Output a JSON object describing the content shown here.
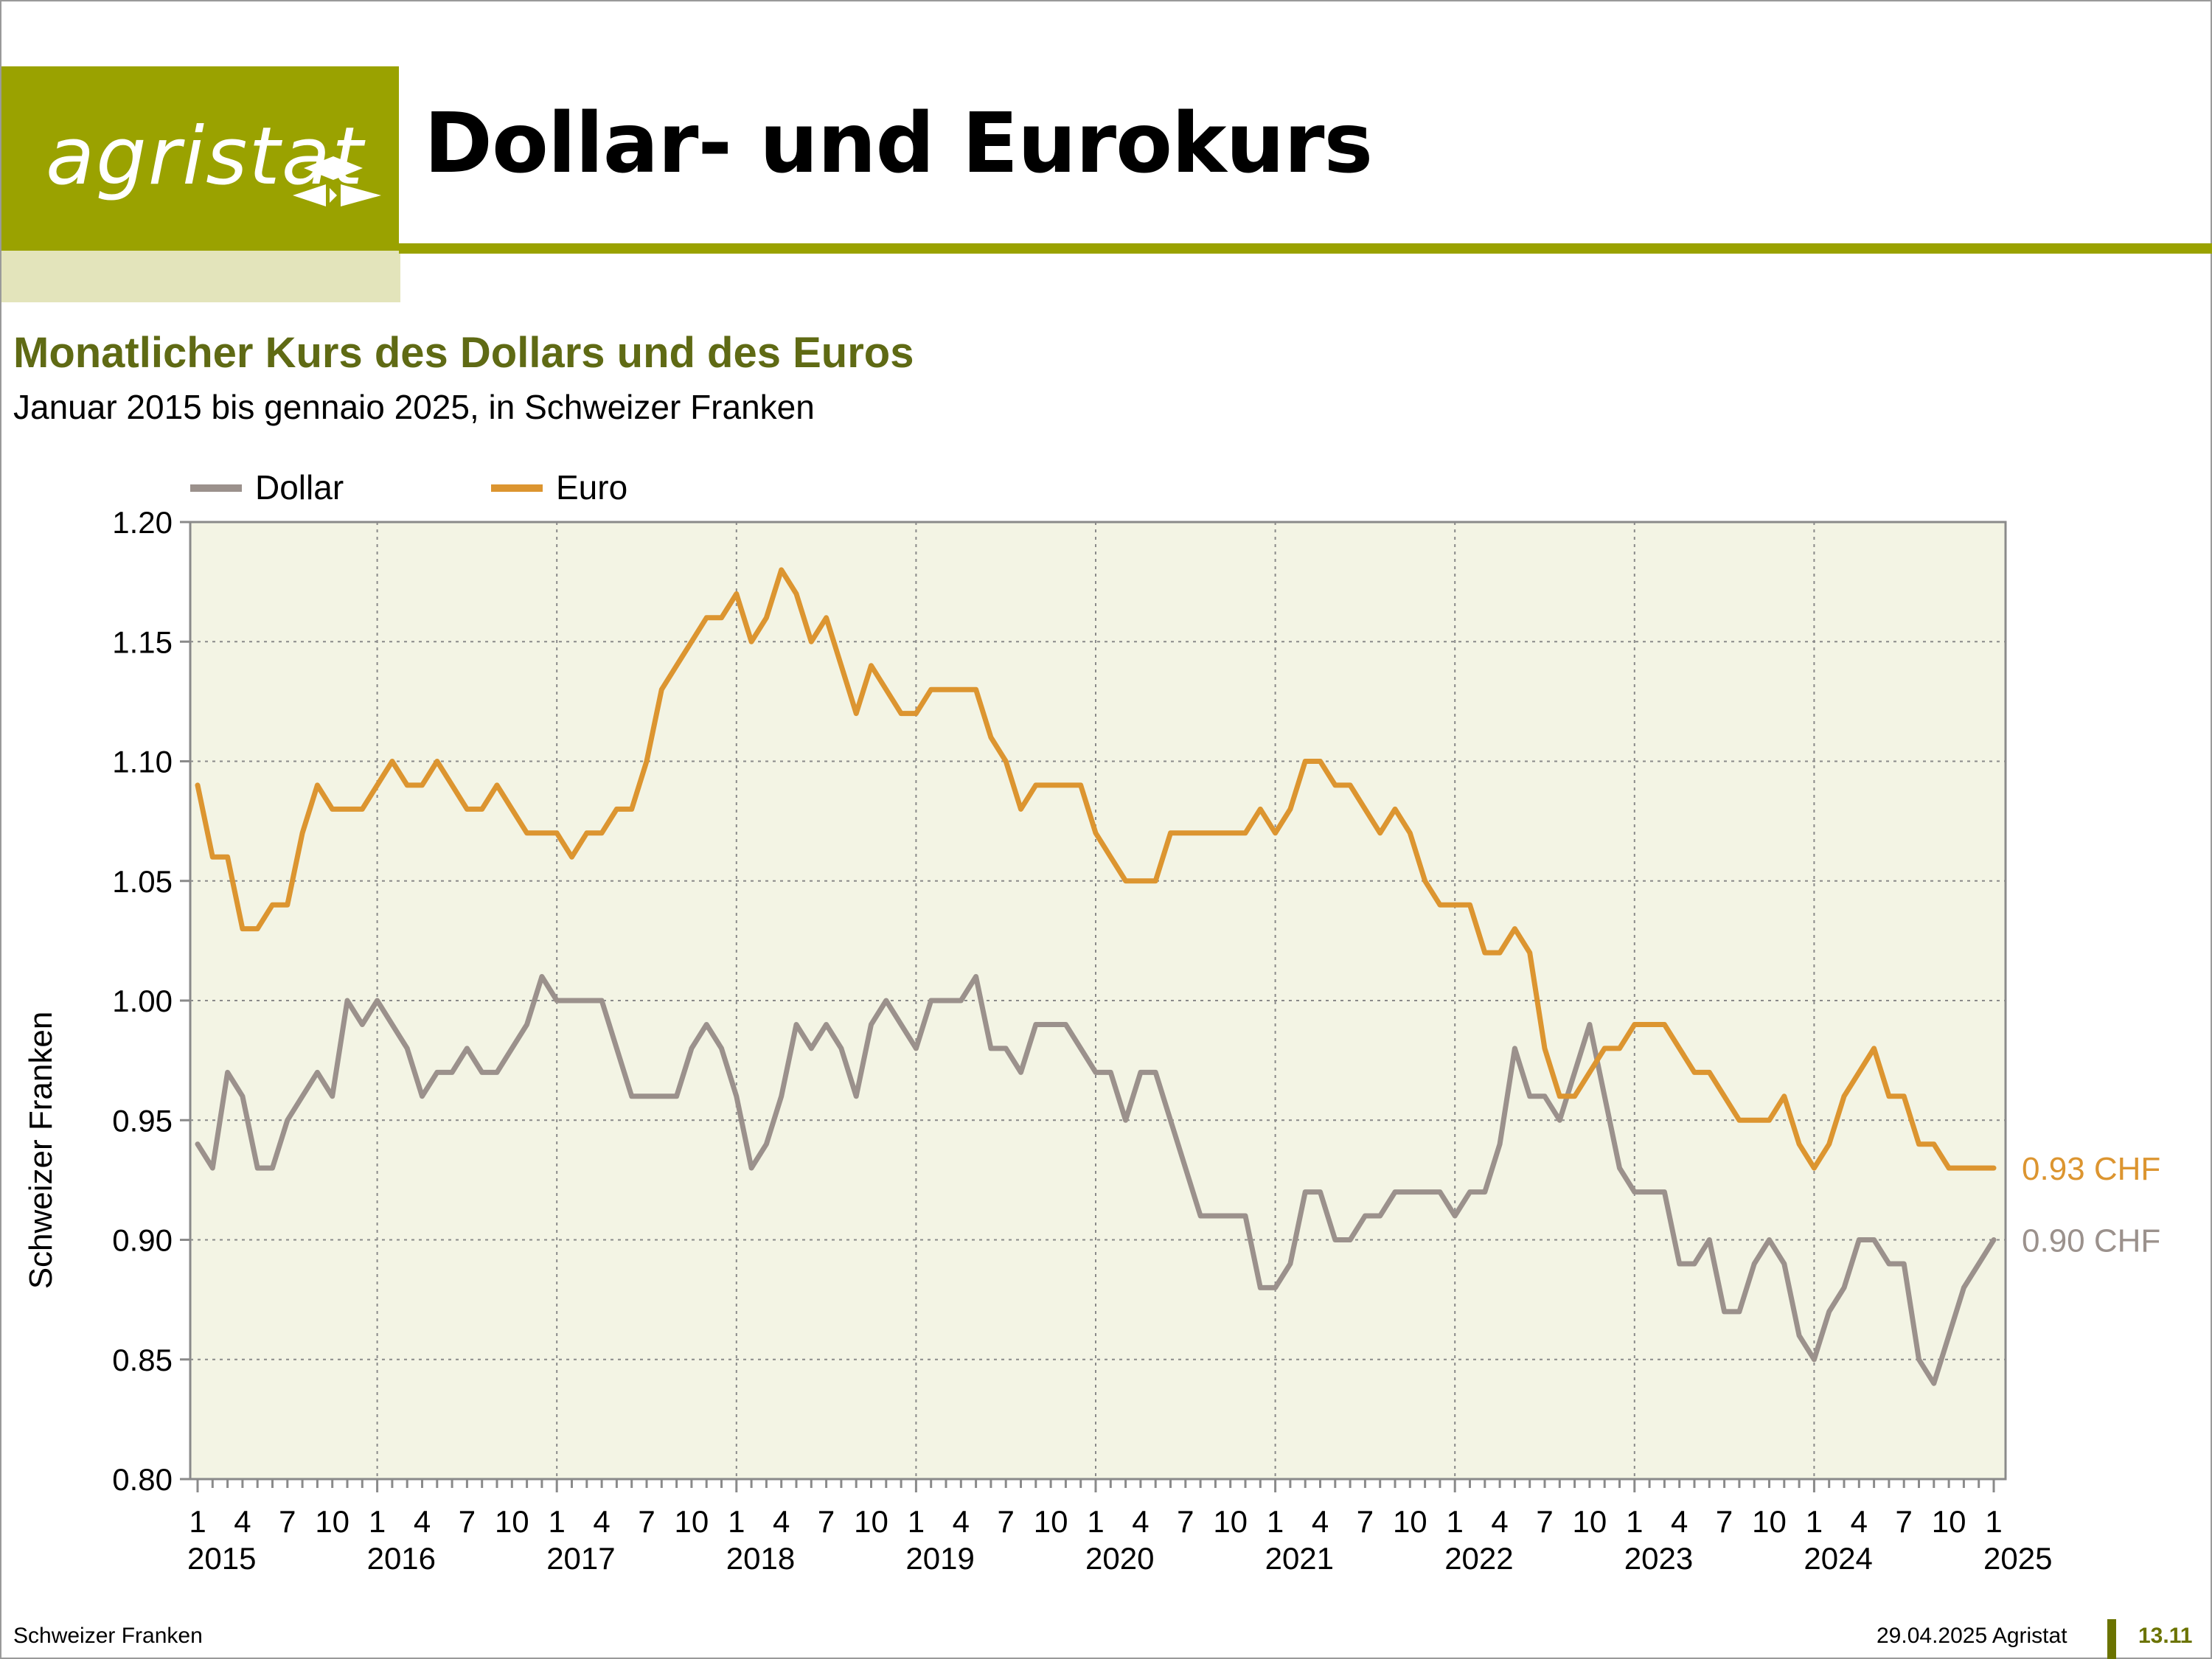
{
  "header": {
    "logo_text": "agristat",
    "title": "Dollar- und Eurokurs"
  },
  "chart_title": "Monatlicher Kurs des Dollars und des Euros",
  "chart_subtitle": "Januar 2015 bis gennaio 2025, in Schweizer Franken",
  "footer": {
    "left": "Schweizer Franken",
    "right": "29.04.2025 Agristat",
    "page": "13.11"
  },
  "colors": {
    "brand": "#9aa200",
    "brand_light": "#e3e4bb",
    "title_green": "#5f6a14",
    "plot_bg": "#f3f4e4",
    "dollar": "#9b918c",
    "euro": "#dc9530"
  },
  "chart_data": {
    "type": "line",
    "ylabel": "Schweizer Franken",
    "ylim": [
      0.8,
      1.2
    ],
    "yticks": [
      "0.80",
      "0.85",
      "0.90",
      "0.95",
      "1.00",
      "1.05",
      "1.10",
      "1.15",
      "1.20"
    ],
    "x_month_labels": [
      "1",
      "4",
      "7",
      "10"
    ],
    "x_year_labels": [
      "2015",
      "2016",
      "2017",
      "2018",
      "2019",
      "2020",
      "2021",
      "2022",
      "2023",
      "2024",
      "2025"
    ],
    "grid": true,
    "legend_position": "top-left",
    "series": [
      {
        "name": "Dollar",
        "color": "#9b918c",
        "end_label": "0.90 CHF",
        "values": [
          0.94,
          0.93,
          0.97,
          0.96,
          0.93,
          0.93,
          0.95,
          0.96,
          0.97,
          0.96,
          1.0,
          0.99,
          1.0,
          0.99,
          0.98,
          0.96,
          0.97,
          0.97,
          0.98,
          0.97,
          0.97,
          0.98,
          0.99,
          1.01,
          1.0,
          1.0,
          1.0,
          1.0,
          0.98,
          0.96,
          0.96,
          0.96,
          0.96,
          0.98,
          0.99,
          0.98,
          0.96,
          0.93,
          0.94,
          0.96,
          0.99,
          0.98,
          0.99,
          0.98,
          0.96,
          0.99,
          1.0,
          0.99,
          0.98,
          1.0,
          1.0,
          1.0,
          1.01,
          0.98,
          0.98,
          0.97,
          0.99,
          0.99,
          0.99,
          0.98,
          0.97,
          0.97,
          0.95,
          0.97,
          0.97,
          0.95,
          0.93,
          0.91,
          0.91,
          0.91,
          0.91,
          0.88,
          0.88,
          0.89,
          0.92,
          0.92,
          0.9,
          0.9,
          0.91,
          0.91,
          0.92,
          0.92,
          0.92,
          0.92,
          0.91,
          0.92,
          0.92,
          0.94,
          0.98,
          0.96,
          0.96,
          0.95,
          0.97,
          0.99,
          0.96,
          0.93,
          0.92,
          0.92,
          0.92,
          0.89,
          0.89,
          0.9,
          0.87,
          0.87,
          0.89,
          0.9,
          0.89,
          0.86,
          0.85,
          0.87,
          0.88,
          0.9,
          0.9,
          0.89,
          0.89,
          0.85,
          0.84,
          0.86,
          0.88,
          0.89,
          0.9
        ]
      },
      {
        "name": "Euro",
        "color": "#dc9530",
        "end_label": "0.93 CHF",
        "values": [
          1.09,
          1.06,
          1.06,
          1.03,
          1.03,
          1.04,
          1.04,
          1.07,
          1.09,
          1.08,
          1.08,
          1.08,
          1.09,
          1.1,
          1.09,
          1.09,
          1.1,
          1.09,
          1.08,
          1.08,
          1.09,
          1.08,
          1.07,
          1.07,
          1.07,
          1.06,
          1.07,
          1.07,
          1.08,
          1.08,
          1.1,
          1.13,
          1.14,
          1.15,
          1.16,
          1.16,
          1.17,
          1.15,
          1.16,
          1.18,
          1.17,
          1.15,
          1.16,
          1.14,
          1.12,
          1.14,
          1.13,
          1.12,
          1.12,
          1.13,
          1.13,
          1.13,
          1.13,
          1.11,
          1.1,
          1.08,
          1.09,
          1.09,
          1.09,
          1.09,
          1.07,
          1.06,
          1.05,
          1.05,
          1.05,
          1.07,
          1.07,
          1.07,
          1.07,
          1.07,
          1.07,
          1.08,
          1.07,
          1.08,
          1.1,
          1.1,
          1.09,
          1.09,
          1.08,
          1.07,
          1.08,
          1.07,
          1.05,
          1.04,
          1.04,
          1.04,
          1.02,
          1.02,
          1.03,
          1.02,
          0.98,
          0.96,
          0.96,
          0.97,
          0.98,
          0.98,
          0.99,
          0.99,
          0.99,
          0.98,
          0.97,
          0.97,
          0.96,
          0.95,
          0.95,
          0.95,
          0.96,
          0.94,
          0.93,
          0.94,
          0.96,
          0.97,
          0.98,
          0.96,
          0.96,
          0.94,
          0.94,
          0.93,
          0.93,
          0.93,
          0.93
        ]
      }
    ]
  }
}
